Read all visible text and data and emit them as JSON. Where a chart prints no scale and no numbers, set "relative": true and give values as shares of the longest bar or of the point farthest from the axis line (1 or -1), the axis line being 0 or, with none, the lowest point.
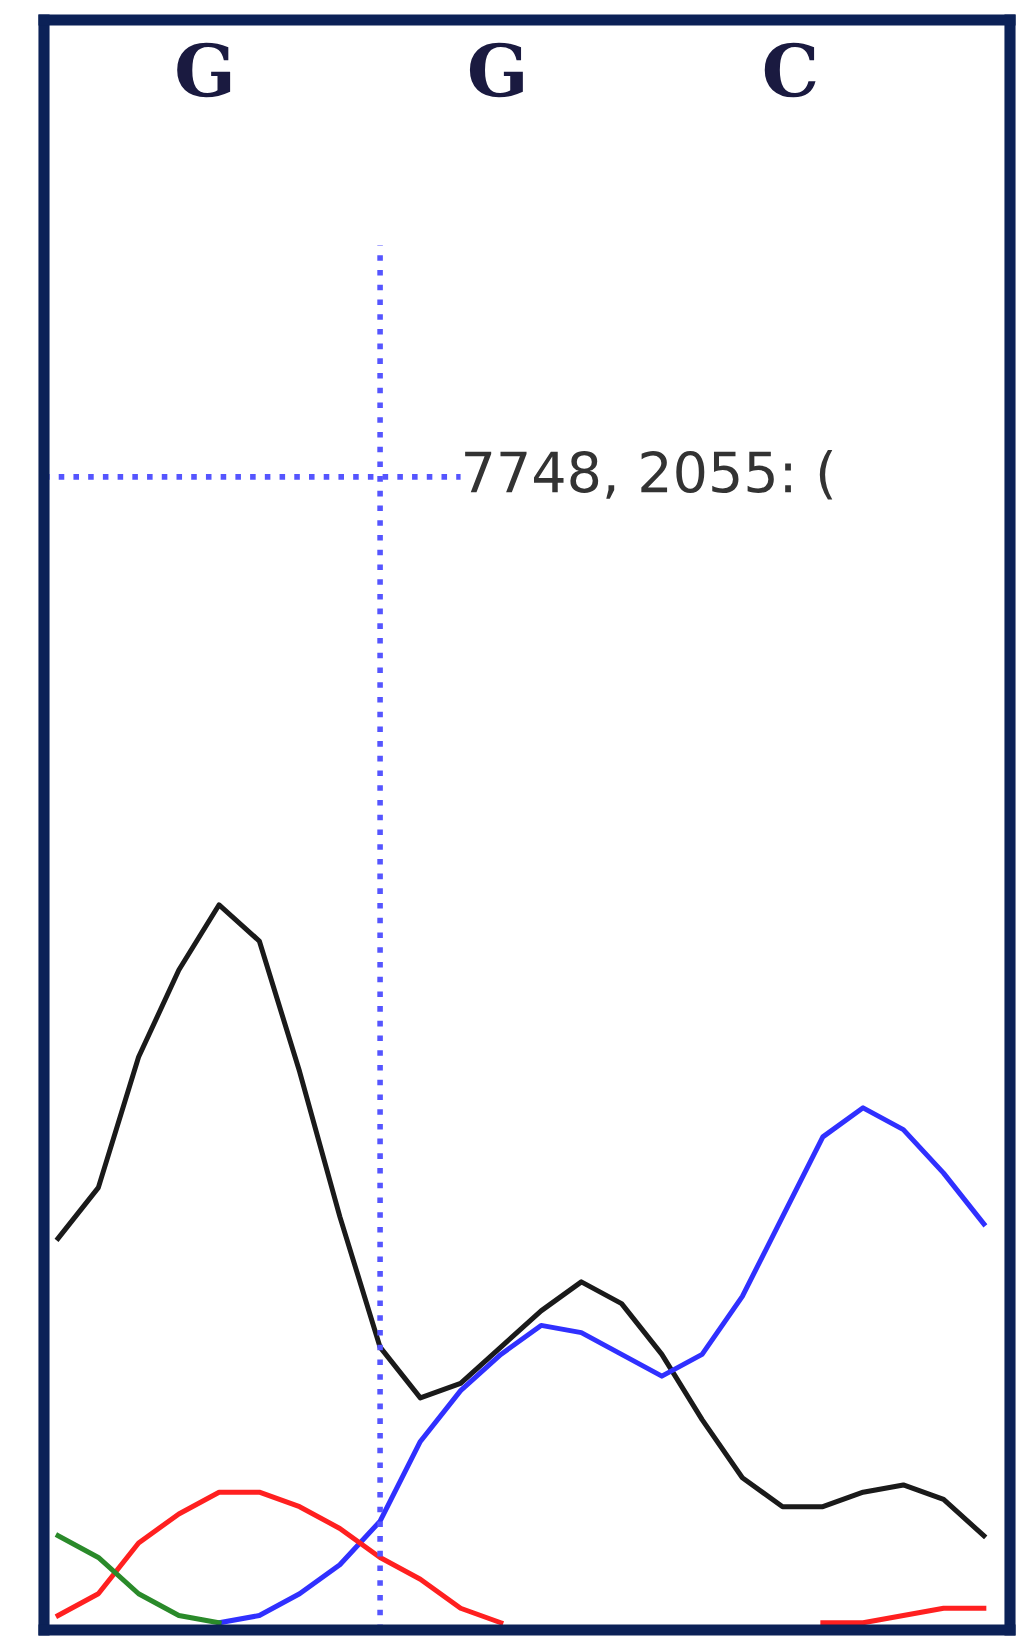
{
  "chart_data": {
    "type": "line",
    "relative": true,
    "categories": [
      null,
      null,
      null,
      null,
      null,
      null,
      null,
      null,
      null,
      null,
      null,
      null,
      null,
      null,
      null,
      null,
      null,
      null,
      null,
      null,
      null,
      null,
      null,
      null
    ],
    "series": [
      {
        "color": "#1a1a1a",
        "values": [
          0.54,
          0.61,
          0.79,
          0.91,
          1.0,
          0.95,
          0.77,
          0.57,
          0.39,
          0.32,
          0.34,
          0.39,
          0.44,
          0.48,
          0.45,
          0.38,
          0.29,
          0.21,
          0.17,
          0.17,
          0.19,
          0.2,
          0.18,
          0.13
        ]
      },
      {
        "color": "#3030ff",
        "values": [
          null,
          null,
          null,
          null,
          0.01,
          0.02,
          0.05,
          0.09,
          0.15,
          0.26,
          0.33,
          0.38,
          0.42,
          0.41,
          0.38,
          0.35,
          0.38,
          0.46,
          0.57,
          0.68,
          0.72,
          0.69,
          0.63,
          0.56
        ]
      },
      {
        "color": "#ff2020",
        "values": [
          0.02,
          0.05,
          0.12,
          0.16,
          0.19,
          0.19,
          0.17,
          0.14,
          0.1,
          0.07,
          0.03,
          0.01,
          null,
          null,
          null,
          null,
          null,
          null,
          null,
          0.01,
          0.01,
          0.02,
          0.03,
          0.03
        ]
      },
      {
        "color": "#2a8a2a",
        "values": [
          0.13,
          0.1,
          0.05,
          0.02,
          0.01,
          null,
          null,
          null,
          null,
          null,
          null,
          null,
          null,
          null,
          null,
          null,
          null,
          null,
          null,
          null,
          null,
          null,
          null,
          null
        ]
      }
    ],
    "annotations": [
      "G",
      "G",
      "C",
      "7748, 2055: ("
    ],
    "legend": false
  }
}
